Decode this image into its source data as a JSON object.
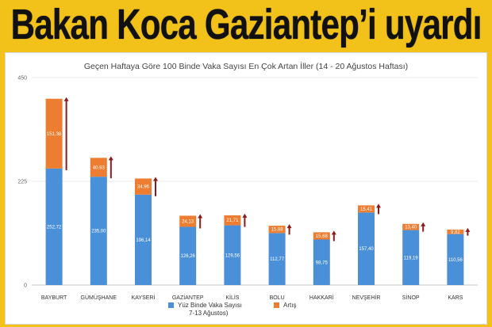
{
  "headline": {
    "text": "Bakan Koca Gaziantep’i uyardı"
  },
  "colors": {
    "page_background": "#f2c21a",
    "base_series": "#4a90d9",
    "increase_series": "#ed7d31",
    "arrow": "#8b1a1a"
  },
  "chart_data": {
    "type": "bar",
    "stacked": true,
    "title": "Geçen Haftaya Göre 100 Binde Vaka Sayısı En Çok Artan İller (14 - 20 Ağustos Haftası)",
    "categories": [
      "BAYBURT",
      "GÜMÜŞHANE",
      "KAYSERİ",
      "GAZİANTEP",
      "KİLİS",
      "BOLU",
      "HAKKARİ",
      "NEVŞEHİR",
      "SİNOP",
      "KARS"
    ],
    "series": [
      {
        "name": "Yüz Binde Vaka Sayısı 7-13 Ağustos)",
        "legend_lines": [
          "Yüz Binde Vaka Sayısı",
          "7-13 Ağustos)"
        ],
        "values": [
          252.72,
          235.0,
          196.14,
          126.26,
          129.56,
          112.77,
          98.75,
          157.4,
          119.19,
          110.56
        ],
        "labels": [
          "252,72",
          "235,00",
          "196,14",
          "126,26",
          "129,56",
          "112,77",
          "98,75",
          "157,40",
          "119,19",
          "110,56"
        ],
        "color": "#4a90d9"
      },
      {
        "name": "Artış",
        "values": [
          151.38,
          40.93,
          34.96,
          24.13,
          21.71,
          15.88,
          15.68,
          15.41,
          13.4,
          9.82
        ],
        "labels": [
          "151,38",
          "40,93",
          "34,96",
          "24,13",
          "21,71",
          "15,88",
          "15,68",
          "15,41",
          "13,40",
          "9,82"
        ],
        "color": "#ed7d31"
      }
    ],
    "ylim": [
      0,
      450
    ],
    "yticks": [
      0,
      225,
      450
    ],
    "ytick_labels": [
      "0",
      "225",
      "450"
    ],
    "grid": true,
    "legend_position": "bottom",
    "annotations": "upward arrow next to each bar indicating increase"
  }
}
